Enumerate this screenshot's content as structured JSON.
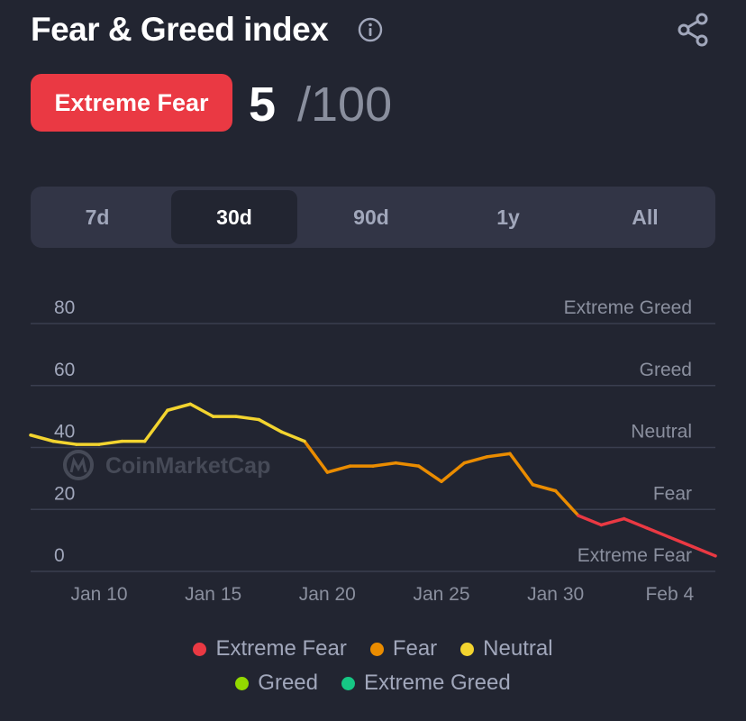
{
  "header": {
    "title": "Fear & Greed index",
    "info_icon": "info-icon",
    "share_icon": "share-icon"
  },
  "score": {
    "badge_label": "Extreme Fear",
    "badge_color": "#ea3943",
    "value": "5",
    "max": "/100"
  },
  "range_tabs": [
    {
      "label": "7d",
      "active": false
    },
    {
      "label": "30d",
      "active": true
    },
    {
      "label": "90d",
      "active": false
    },
    {
      "label": "1y",
      "active": false
    },
    {
      "label": "All",
      "active": false
    }
  ],
  "watermark": "CoinMarketCap",
  "legend": [
    {
      "label": "Extreme Fear",
      "color": "#ea3943"
    },
    {
      "label": "Fear",
      "color": "#ea8c00"
    },
    {
      "label": "Neutral",
      "color": "#f3d42f"
    },
    {
      "label": "Greed",
      "color": "#93d900"
    },
    {
      "label": "Extreme Greed",
      "color": "#16c784"
    }
  ],
  "chart_data": {
    "type": "line",
    "x_start": "Jan 7",
    "x_tick_labels": [
      "Jan 10",
      "Jan 15",
      "Jan 20",
      "Jan 25",
      "Jan 30",
      "Feb 4"
    ],
    "x_tick_days": [
      3,
      8,
      13,
      18,
      23,
      28
    ],
    "y_ticks": [
      0,
      20,
      40,
      60,
      80
    ],
    "y_zone_labels": [
      {
        "label": "Extreme Fear",
        "value": 0
      },
      {
        "label": "Fear",
        "value": 20
      },
      {
        "label": "Neutral",
        "value": 40
      },
      {
        "label": "Greed",
        "value": 60
      },
      {
        "label": "Extreme Greed",
        "value": 80
      }
    ],
    "ylim": [
      0,
      80
    ],
    "grid": true,
    "series": [
      {
        "x": [
          0,
          1,
          2,
          3,
          4,
          5,
          6,
          7,
          8,
          9,
          10,
          11,
          12,
          13,
          14,
          15,
          16,
          17,
          18,
          19,
          20,
          21,
          22,
          23,
          24,
          25,
          26,
          27,
          28,
          29,
          30
        ],
        "values": [
          44,
          42,
          41,
          41,
          42,
          42,
          52,
          54,
          50,
          50,
          49,
          45,
          42,
          32,
          34,
          34,
          35,
          34,
          29,
          35,
          37,
          38,
          28,
          26,
          18,
          15,
          17,
          14,
          11,
          8,
          5
        ]
      }
    ]
  }
}
